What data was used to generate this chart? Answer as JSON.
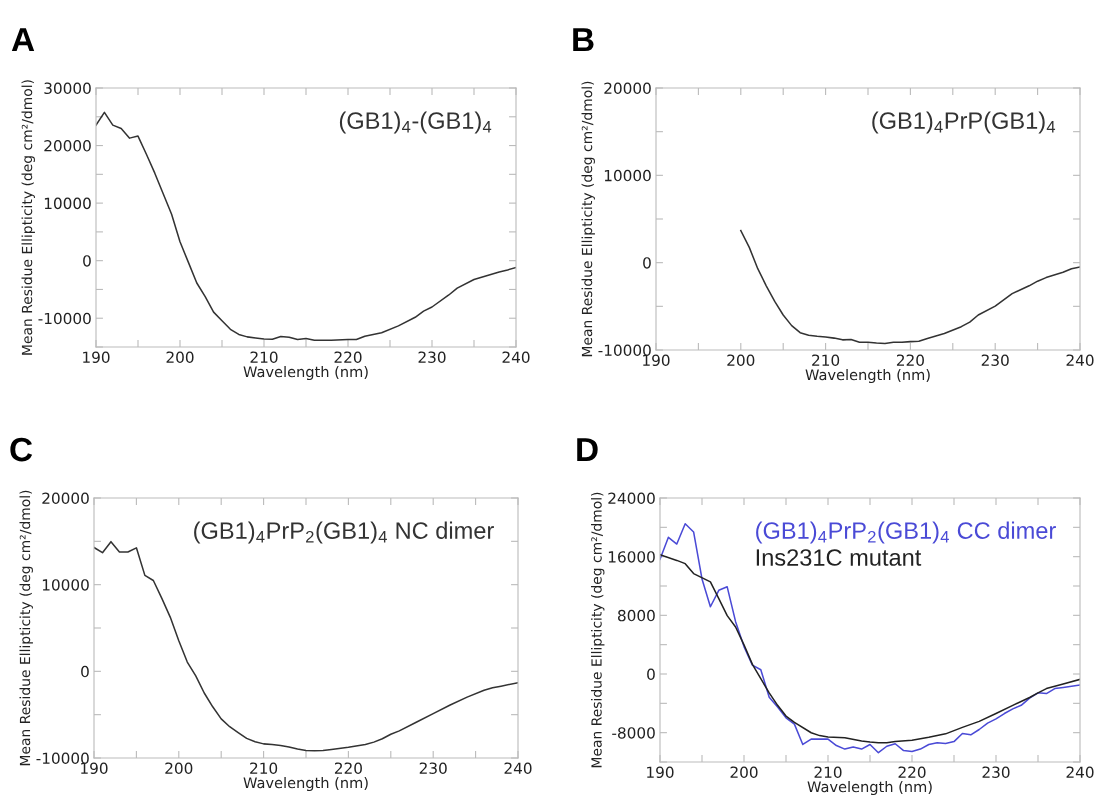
{
  "chart_data": [
    {
      "type": "line",
      "title": "A",
      "xlabel": "Wavelength (nm)",
      "ylabel": "Mean Residue Ellipticity (deg cm²/dmol)",
      "legend": "top right",
      "grid": false,
      "xlim": [
        190,
        240
      ],
      "xticks": [
        190,
        {
          "value": 195,
          "label": null
        },
        200,
        {
          "value": 205,
          "label": null
        },
        210,
        {
          "value": 215,
          "label": null
        },
        220,
        {
          "value": 225,
          "label": null
        },
        230,
        {
          "value": 235,
          "label": null
        },
        240
      ],
      "ylim": [
        -15000,
        30000
      ],
      "yticks": [
        {
          "value": -15000,
          "label": null
        },
        -10000,
        {
          "value": -5000,
          "label": null
        },
        0,
        {
          "value": 5000,
          "label": null
        },
        10000,
        {
          "value": 15000,
          "label": null
        },
        20000,
        {
          "value": 25000,
          "label": null
        },
        30000
      ],
      "series": [
        {
          "name": "(GB1)$_{4}$-(GB1)$_{4}$",
          "color": "#333333",
          "x": [
            190,
            191,
            192,
            193,
            194,
            195,
            196,
            197,
            198,
            199,
            200,
            201,
            202,
            203,
            204,
            205,
            206,
            207,
            208,
            209,
            210,
            211,
            212,
            213,
            214,
            215,
            216,
            218,
            220,
            221,
            222,
            224,
            226,
            228,
            229,
            230,
            232,
            233,
            235,
            237,
            238,
            239,
            240
          ],
          "values": [
            23550,
            25760,
            23550,
            22960,
            21290,
            21650,
            18490,
            15200,
            11630,
            8050,
            3280,
            -300,
            -3880,
            -6260,
            -8940,
            -10440,
            -11930,
            -12820,
            -13240,
            -13420,
            -13600,
            -13650,
            -13180,
            -13300,
            -13710,
            -13540,
            -13830,
            -13830,
            -13710,
            -13710,
            -13120,
            -12520,
            -11330,
            -9840,
            -8770,
            -8050,
            -5960,
            -4770,
            -3280,
            -2390,
            -1970,
            -1610,
            -1190
          ]
        }
      ]
    },
    {
      "type": "line",
      "title": "B",
      "xlabel": "Wavelength (nm)",
      "ylabel": "Mean Residue Ellipticity (deg cm²/dmol)",
      "legend": "top right",
      "grid": false,
      "xlim": [
        190,
        240
      ],
      "xticks": [
        190,
        {
          "value": 195,
          "label": null
        },
        200,
        {
          "value": 205,
          "label": null
        },
        210,
        {
          "value": 215,
          "label": null
        },
        220,
        {
          "value": 225,
          "label": null
        },
        230,
        {
          "value": 235,
          "label": null
        },
        240
      ],
      "ylim": [
        -10000,
        20000
      ],
      "yticks": [
        -10000,
        {
          "value": -5000,
          "label": null
        },
        0,
        {
          "value": 5000,
          "label": null
        },
        10000,
        {
          "value": 15000,
          "label": null
        },
        20000
      ],
      "series": [
        {
          "name": "(GB1)$_{4}$PrP(GB1)$_{4}$",
          "color": "#333333",
          "x": [
            200,
            201,
            202,
            203,
            204,
            205,
            206,
            207,
            208,
            209,
            210,
            211,
            212,
            213,
            214,
            215,
            216,
            217,
            218,
            219,
            220,
            221,
            222,
            224,
            226,
            227,
            228,
            230,
            232,
            234,
            235,
            236,
            238,
            239,
            240
          ],
          "values": [
            3670,
            1750,
            -690,
            -2650,
            -4440,
            -5990,
            -7210,
            -8020,
            -8310,
            -8430,
            -8510,
            -8640,
            -8840,
            -8800,
            -9120,
            -9120,
            -9210,
            -9250,
            -9120,
            -9120,
            -9040,
            -9000,
            -8680,
            -8110,
            -7330,
            -6800,
            -5990,
            -4970,
            -3540,
            -2650,
            -2120,
            -1710,
            -1100,
            -690,
            -490
          ]
        }
      ]
    },
    {
      "type": "line",
      "title": "C",
      "xlabel": "Wavelength (nm)",
      "ylabel": "Mean Residue Ellipticity (deg cm²/dmol)",
      "legend": "top right",
      "grid": false,
      "xlim": [
        190,
        240
      ],
      "xticks": [
        190,
        {
          "value": 195,
          "label": null
        },
        200,
        {
          "value": 205,
          "label": null
        },
        210,
        {
          "value": 215,
          "label": null
        },
        220,
        {
          "value": 225,
          "label": null
        },
        230,
        {
          "value": 235,
          "label": null
        },
        240
      ],
      "ylim": [
        -10000,
        20000
      ],
      "yticks": [
        -10000,
        {
          "value": -5000,
          "label": null
        },
        0,
        {
          "value": 5000,
          "label": null
        },
        10000,
        {
          "value": 15000,
          "label": null
        },
        20000
      ],
      "series": [
        {
          "name": "(GB1)$_{4}$PrP$_{2}$(GB1)$_{4}$ NC dimer",
          "color": "#333333",
          "x": [
            190,
            191,
            192,
            193,
            194,
            195,
            196,
            197,
            198,
            199,
            200,
            201,
            202,
            203,
            204,
            205,
            206,
            207,
            208,
            209,
            210,
            211,
            212,
            213,
            214,
            215,
            216,
            217,
            218,
            220,
            222,
            223,
            224,
            225,
            226,
            228,
            230,
            232,
            234,
            236,
            237,
            238,
            240
          ],
          "values": [
            14290,
            13690,
            14960,
            13770,
            13770,
            14250,
            11070,
            10480,
            8410,
            6230,
            3530,
            1070,
            -520,
            -2500,
            -4090,
            -5480,
            -6390,
            -7060,
            -7740,
            -8130,
            -8370,
            -8450,
            -8570,
            -8730,
            -8970,
            -9130,
            -9170,
            -9130,
            -9010,
            -8770,
            -8450,
            -8170,
            -7780,
            -7260,
            -6870,
            -5870,
            -4880,
            -3890,
            -2980,
            -2180,
            -1900,
            -1710,
            -1310
          ]
        }
      ]
    },
    {
      "type": "line",
      "title": "D",
      "xlabel": "Wavelength (nm)",
      "ylabel": "Mean Residue Ellipticity (deg cm²/dmol)",
      "legend": "top right",
      "grid": false,
      "xlim": [
        190,
        240
      ],
      "xticks": [
        190,
        {
          "value": 195,
          "label": null
        },
        200,
        {
          "value": 205,
          "label": null
        },
        210,
        {
          "value": 215,
          "label": null
        },
        220,
        {
          "value": 225,
          "label": null
        },
        230,
        {
          "value": 235,
          "label": null
        },
        240
      ],
      "ylim": [
        -12000,
        24000
      ],
      "yticks": [
        {
          "value": -12000,
          "label": null
        },
        -8000,
        {
          "value": -4000,
          "label": null
        },
        0,
        {
          "value": 4000,
          "label": null
        },
        8000,
        {
          "value": 12000,
          "label": null
        },
        16000,
        {
          "value": 20000,
          "label": null
        },
        24000
      ],
      "series": [
        {
          "name": "(GB1)$_{4}$PrP$_{2}$(GB1)$_{4}$ CC dimer",
          "color": "#4a4ad6",
          "x": [
            190,
            191,
            192,
            193,
            194,
            195,
            196,
            197,
            198,
            199,
            200,
            201,
            202,
            203,
            204,
            205,
            206,
            207,
            208,
            210,
            211,
            212,
            213,
            214,
            215,
            216,
            217,
            218,
            219,
            220,
            221,
            222,
            223,
            224,
            225,
            226,
            227,
            228,
            229,
            230,
            231,
            232,
            233,
            234,
            235,
            236,
            237,
            238,
            240
          ],
          "values": [
            15630,
            18640,
            17720,
            20490,
            19370,
            12960,
            9170,
            11410,
            11890,
            7140,
            3740,
            1210,
            580,
            -3160,
            -4510,
            -5970,
            -6840,
            -9610,
            -8880,
            -8880,
            -9760,
            -10240,
            -9950,
            -10240,
            -9610,
            -10730,
            -9850,
            -9510,
            -10440,
            -10580,
            -10240,
            -9610,
            -9370,
            -9470,
            -9220,
            -8110,
            -8300,
            -7570,
            -6700,
            -6120,
            -5390,
            -4760,
            -4270,
            -3300,
            -2570,
            -2670,
            -1990,
            -1840,
            -1500
          ]
        },
        {
          "name": "Ins231C mutant",
          "color": "#222222",
          "x": [
            190,
            192,
            193,
            194,
            196,
            197,
            198,
            199,
            200,
            201,
            202,
            203,
            204,
            205,
            206,
            208,
            209,
            210,
            212,
            214,
            215,
            216,
            217,
            218,
            220,
            222,
            224,
            226,
            228,
            230,
            232,
            234,
            235,
            236,
            238,
            240
          ],
          "values": [
            16260,
            15490,
            15050,
            13690,
            12570,
            10290,
            7960,
            6410,
            3980,
            1310,
            -630,
            -2570,
            -4270,
            -5730,
            -6600,
            -8010,
            -8400,
            -8590,
            -8690,
            -9130,
            -9270,
            -9370,
            -9370,
            -9220,
            -9030,
            -8640,
            -8160,
            -7280,
            -6460,
            -5390,
            -4270,
            -3200,
            -2570,
            -1990,
            -1360,
            -730
          ]
        }
      ]
    }
  ]
}
